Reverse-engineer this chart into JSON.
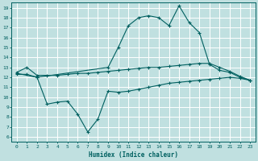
{
  "xlabel": "Humidex (Indice chaleur)",
  "background_color": "#c0e0e0",
  "grid_color": "#ffffff",
  "line_color": "#006060",
  "xlim": [
    -0.5,
    23.5
  ],
  "ylim": [
    5.5,
    19.5
  ],
  "xticks": [
    0,
    1,
    2,
    3,
    4,
    5,
    6,
    7,
    8,
    9,
    10,
    11,
    12,
    13,
    14,
    15,
    16,
    17,
    18,
    19,
    20,
    21,
    22,
    23
  ],
  "yticks": [
    6,
    7,
    8,
    9,
    10,
    11,
    12,
    13,
    14,
    15,
    16,
    17,
    18,
    19
  ],
  "line_flat_x": [
    0,
    1,
    2,
    3,
    4,
    5,
    6,
    7,
    8,
    9,
    10,
    11,
    12,
    13,
    14,
    15,
    16,
    17,
    18,
    19,
    20,
    21,
    22,
    23
  ],
  "line_flat_y": [
    12.5,
    13.0,
    12.2,
    12.2,
    12.2,
    12.3,
    12.4,
    12.4,
    12.5,
    12.6,
    12.7,
    12.8,
    12.9,
    13.0,
    13.0,
    13.1,
    13.2,
    13.3,
    13.4,
    13.4,
    13.0,
    12.6,
    12.1,
    11.7
  ],
  "line_low_x": [
    0,
    1,
    2,
    3,
    4,
    5,
    6,
    7,
    8,
    9,
    10,
    11,
    12,
    13,
    14,
    15,
    16,
    17,
    18,
    19,
    20,
    21,
    22,
    23
  ],
  "line_low_y": [
    12.3,
    12.3,
    12.0,
    9.3,
    9.5,
    9.6,
    8.3,
    6.5,
    7.8,
    10.6,
    10.5,
    10.6,
    10.8,
    11.0,
    11.2,
    11.4,
    11.5,
    11.6,
    11.7,
    11.8,
    11.9,
    12.0,
    11.9,
    11.7
  ],
  "line_high_x": [
    0,
    2,
    9,
    10,
    11,
    12,
    13,
    14,
    15,
    16,
    17,
    18,
    19,
    20,
    21,
    22,
    23
  ],
  "line_high_y": [
    12.4,
    12.0,
    13.0,
    15.0,
    17.2,
    18.0,
    18.2,
    18.0,
    17.2,
    19.2,
    17.5,
    16.5,
    13.3,
    12.7,
    12.5,
    12.0,
    11.7
  ]
}
